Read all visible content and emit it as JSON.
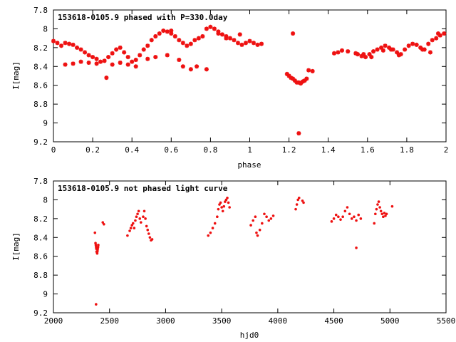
{
  "colors": {
    "points": "#ee1111",
    "axes": "#000000",
    "background": "#ffffff"
  },
  "chart_data": [
    {
      "type": "scatter",
      "title": "153618-0105.9 phased with P=330.0day",
      "xlabel": "phase",
      "ylabel": "I[mag]",
      "xlim": [
        0,
        2
      ],
      "ylim": [
        7.8,
        9.2
      ],
      "y_inverted": true,
      "xticks": [
        0,
        0.2,
        0.4,
        0.6,
        0.8,
        1,
        1.2,
        1.4,
        1.6,
        1.8,
        2
      ],
      "xtick_labels": [
        "0",
        "0.2",
        "0.4",
        "0.6",
        "0.8",
        "1",
        "1.2",
        "1.4",
        "1.6",
        "1.8",
        "2"
      ],
      "yticks": [
        7.8,
        8.0,
        8.2,
        8.4,
        8.6,
        8.8,
        9.0,
        9.2
      ],
      "ytick_labels": [
        "7.8",
        "8",
        "8.2",
        "8.4",
        "8.6",
        "8.8",
        "9",
        "9.2"
      ],
      "grid": false,
      "marker": "plus-star",
      "series": [
        {
          "x": [
            0.0,
            0.02,
            0.04,
            0.06,
            0.08,
            0.1,
            0.12,
            0.14,
            0.16,
            0.18,
            0.2,
            0.22,
            0.24,
            0.26,
            0.28,
            0.3,
            0.32,
            0.34,
            0.36,
            0.38,
            0.4,
            0.42,
            0.44,
            0.46,
            0.48,
            0.5,
            0.52,
            0.54,
            0.56,
            0.58,
            0.6,
            0.62,
            0.64,
            0.66,
            0.68,
            0.7,
            0.72,
            0.74,
            0.76,
            0.78,
            0.8,
            0.82,
            0.84,
            0.86,
            0.88,
            0.9,
            0.92,
            0.94,
            0.96,
            0.98,
            1.0,
            1.02,
            1.04,
            1.06,
            1.19,
            1.2,
            1.21,
            1.22,
            1.23,
            1.24,
            1.25,
            1.26,
            1.27,
            1.28,
            1.29,
            1.3,
            1.32,
            1.25,
            1.43,
            1.45,
            1.47,
            1.55,
            1.57,
            1.59,
            1.61,
            1.63,
            1.65,
            1.67,
            1.69,
            1.71,
            1.73,
            1.75,
            1.77,
            1.79,
            1.81,
            1.83,
            1.85,
            1.87,
            1.89,
            1.91,
            1.93,
            1.95,
            1.97,
            1.99,
            0.27,
            0.6,
            0.73,
            0.95,
            1.22,
            0.06,
            0.1,
            0.14,
            0.18,
            0.22,
            0.3,
            0.34,
            0.38,
            0.42,
            0.48,
            0.52,
            0.58,
            0.64,
            0.66,
            0.7,
            0.78,
            0.84,
            0.88,
            1.5,
            1.54,
            1.58,
            1.62,
            1.68,
            1.72,
            1.76,
            1.88,
            1.92,
            1.96
          ],
          "y": [
            8.13,
            8.15,
            8.18,
            8.15,
            8.16,
            8.17,
            8.2,
            8.22,
            8.25,
            8.28,
            8.3,
            8.32,
            8.35,
            8.34,
            8.3,
            8.26,
            8.22,
            8.2,
            8.25,
            8.3,
            8.35,
            8.33,
            8.28,
            8.22,
            8.18,
            8.12,
            8.08,
            8.05,
            8.02,
            8.03,
            8.05,
            8.08,
            8.12,
            8.15,
            8.18,
            8.16,
            8.12,
            8.1,
            8.08,
            8.0,
            7.98,
            8.0,
            8.03,
            8.06,
            8.08,
            8.1,
            8.12,
            8.15,
            8.17,
            8.15,
            8.13,
            8.15,
            8.17,
            8.16,
            8.48,
            8.5,
            8.52,
            8.53,
            8.55,
            8.57,
            8.57,
            8.58,
            8.56,
            8.55,
            8.53,
            8.44,
            8.45,
            9.11,
            8.26,
            8.25,
            8.23,
            8.27,
            8.29,
            8.3,
            8.27,
            8.24,
            8.22,
            8.2,
            8.18,
            8.2,
            8.22,
            8.25,
            8.27,
            8.22,
            8.18,
            8.16,
            8.17,
            8.2,
            8.22,
            8.16,
            8.12,
            8.1,
            8.07,
            8.05,
            8.52,
            8.02,
            8.4,
            8.06,
            8.05,
            8.38,
            8.37,
            8.35,
            8.36,
            8.37,
            8.38,
            8.36,
            8.38,
            8.4,
            8.32,
            8.3,
            8.28,
            8.33,
            8.4,
            8.43,
            8.43,
            8.05,
            8.1,
            8.24,
            8.26,
            8.27,
            8.3,
            8.23,
            8.22,
            8.28,
            8.22,
            8.25,
            8.05
          ]
        }
      ]
    },
    {
      "type": "scatter",
      "title": "153618-0105.9 not phased light curve",
      "xlabel": "hjd0",
      "ylabel": "I[mag]",
      "xlim": [
        2000,
        5500
      ],
      "ylim": [
        7.8,
        9.2
      ],
      "y_inverted": true,
      "xticks": [
        2000,
        2500,
        3000,
        3500,
        4000,
        4500,
        5000,
        5500
      ],
      "xtick_labels": [
        "2000",
        "2500",
        "3000",
        "3500",
        "4000",
        "4500",
        "5000",
        "5500"
      ],
      "yticks": [
        7.8,
        8.0,
        8.2,
        8.4,
        8.6,
        8.8,
        9.0,
        9.2
      ],
      "ytick_labels": [
        "7.8",
        "8",
        "8.2",
        "8.4",
        "8.6",
        "8.8",
        "9",
        "9.2"
      ],
      "grid": false,
      "marker": "dot",
      "series": [
        {
          "x": [
            2370,
            2375,
            2378,
            2380,
            2382,
            2385,
            2388,
            2390,
            2392,
            2394,
            2396,
            2398,
            2400,
            2440,
            2450,
            2380,
            2660,
            2680,
            2690,
            2700,
            2710,
            2720,
            2730,
            2740,
            2750,
            2760,
            2770,
            2780,
            2800,
            2810,
            2820,
            2830,
            2840,
            2850,
            2860,
            2870,
            2880,
            3380,
            3400,
            3420,
            3440,
            3460,
            3470,
            3480,
            3490,
            3500,
            3510,
            3520,
            3530,
            3540,
            3550,
            3560,
            3570,
            3760,
            3780,
            3800,
            3810,
            3820,
            3840,
            3860,
            3880,
            3900,
            3920,
            3940,
            3960,
            4160,
            4170,
            4180,
            4190,
            4220,
            4230,
            4480,
            4500,
            4520,
            4540,
            4560,
            4580,
            4600,
            4620,
            4640,
            4660,
            4680,
            4700,
            4720,
            4740,
            4700,
            4860,
            4870,
            4880,
            4890,
            4900,
            4910,
            4920,
            4930,
            4940,
            4950,
            4960,
            4970,
            5020
          ],
          "y": [
            8.35,
            8.46,
            8.48,
            8.5,
            8.52,
            8.55,
            8.56,
            8.57,
            8.55,
            8.53,
            8.51,
            8.5,
            8.48,
            8.24,
            8.26,
            9.11,
            8.38,
            8.33,
            8.3,
            8.27,
            8.25,
            8.3,
            8.22,
            8.18,
            8.15,
            8.12,
            8.2,
            8.24,
            8.18,
            8.12,
            8.2,
            8.28,
            8.32,
            8.36,
            8.4,
            8.43,
            8.42,
            8.38,
            8.35,
            8.3,
            8.25,
            8.18,
            8.1,
            8.05,
            8.03,
            8.08,
            8.12,
            8.07,
            8.02,
            8.0,
            7.98,
            8.03,
            8.08,
            8.27,
            8.22,
            8.18,
            8.35,
            8.38,
            8.32,
            8.25,
            8.15,
            8.18,
            8.22,
            8.2,
            8.17,
            8.1,
            8.05,
            8.0,
            7.98,
            8.01,
            8.03,
            8.23,
            8.2,
            8.16,
            8.18,
            8.21,
            8.18,
            8.12,
            8.08,
            8.15,
            8.2,
            8.18,
            8.22,
            8.16,
            8.2,
            8.51,
            8.25,
            8.15,
            8.1,
            8.05,
            8.02,
            8.08,
            8.12,
            8.15,
            8.18,
            8.14,
            8.17,
            8.15,
            8.07
          ]
        }
      ]
    }
  ]
}
